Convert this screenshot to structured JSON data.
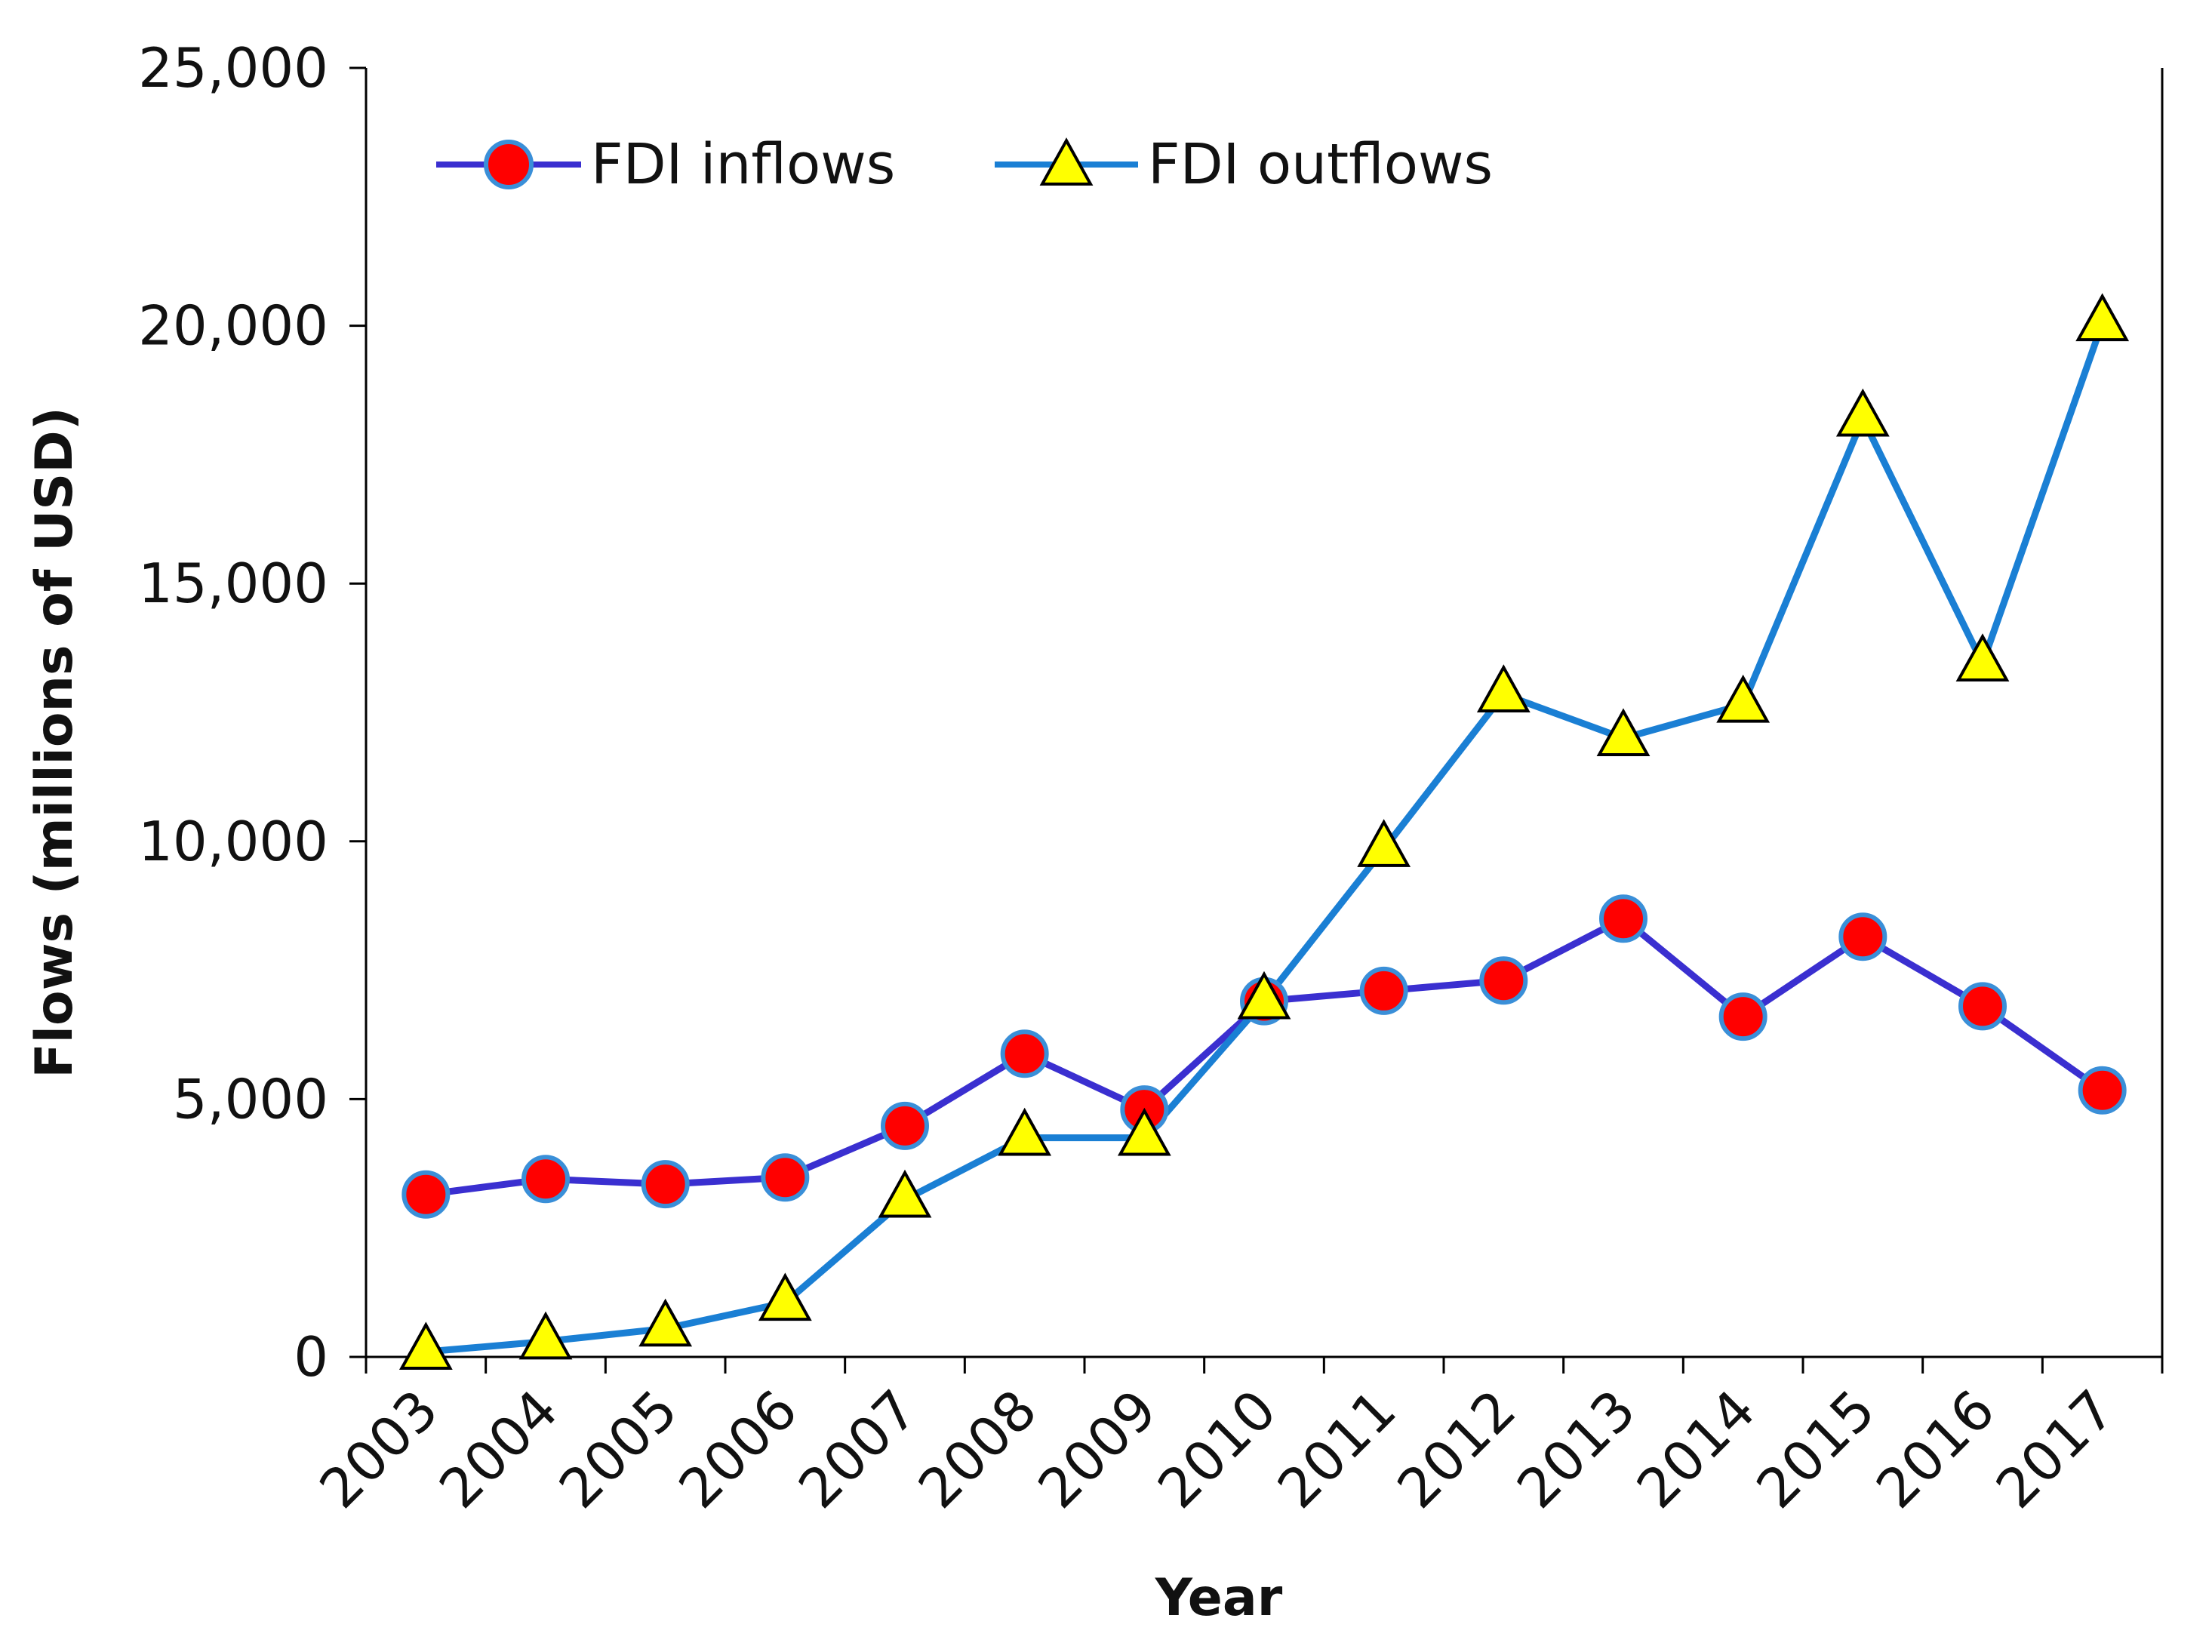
{
  "chart_data": {
    "type": "line",
    "title": "",
    "xlabel": "Year",
    "ylabel": "Flows  (millions of USD)",
    "categories": [
      "2003",
      "2004",
      "2005",
      "2006",
      "2007",
      "2008",
      "2009",
      "2010",
      "2011",
      "2012",
      "2013",
      "2014",
      "2015",
      "2016",
      "2017"
    ],
    "ylim": [
      0,
      25000
    ],
    "yticks": [
      0,
      5000,
      10000,
      15000,
      20000,
      25000
    ],
    "ytick_labels": [
      "0",
      "5,000",
      "10,000",
      "15,000",
      "20,000",
      "25,000"
    ],
    "grid": false,
    "legend_position": "top-left",
    "series": [
      {
        "name": "FDI inflows",
        "line_color": "#3a2fd0",
        "marker": "circle",
        "marker_color": "#ff0000",
        "marker_edge": "#3a8fd8",
        "values": [
          3150,
          3450,
          3350,
          3480,
          4480,
          5880,
          4800,
          6900,
          7100,
          7300,
          8500,
          6600,
          8150,
          6800,
          5170
        ]
      },
      {
        "name": "FDI outflows",
        "line_color": "#1a7fd4",
        "marker": "triangle",
        "marker_color": "#ffff00",
        "marker_edge": "#000000",
        "values": [
          100,
          300,
          550,
          1050,
          3050,
          4250,
          4250,
          6900,
          9850,
          12850,
          12000,
          12650,
          18200,
          13450,
          20050
        ]
      }
    ]
  }
}
